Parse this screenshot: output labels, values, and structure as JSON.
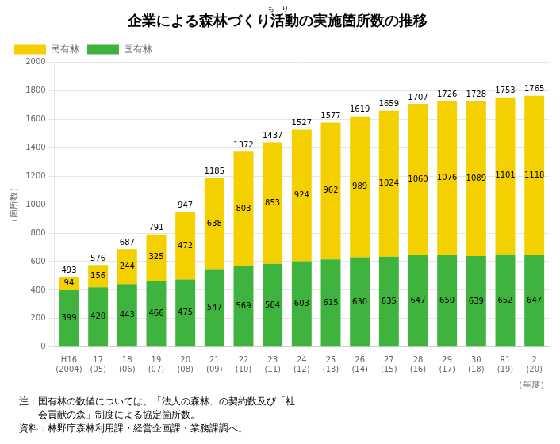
{
  "chart_data": {
    "type": "bar",
    "stacked": true,
    "title": "企業による森林づくり活動の実施箇所数の推移",
    "subtitle": "も　り",
    "ylabel": "（箇所数）",
    "xlabel": "（年度）",
    "categories": [
      [
        "H16",
        "(2004)"
      ],
      [
        "17",
        "(05)"
      ],
      [
        "18",
        "(06)"
      ],
      [
        "19",
        "(07)"
      ],
      [
        "20",
        "(08)"
      ],
      [
        "21",
        "(09)"
      ],
      [
        "22",
        "(10)"
      ],
      [
        "23",
        "(11)"
      ],
      [
        "24",
        "(12)"
      ],
      [
        "25",
        "(13)"
      ],
      [
        "26",
        "(14)"
      ],
      [
        "27",
        "(15)"
      ],
      [
        "28",
        "(16)"
      ],
      [
        "29",
        "(17)"
      ],
      [
        "30",
        "(18)"
      ],
      [
        "R1",
        "(19)"
      ],
      [
        "2",
        "(20)"
      ]
    ],
    "series": [
      {
        "name": "国有林",
        "color": "#3eb43e",
        "values": [
          399,
          420,
          443,
          466,
          475,
          547,
          569,
          584,
          603,
          615,
          630,
          635,
          647,
          650,
          639,
          652,
          647
        ]
      },
      {
        "name": "民有林",
        "color": "#f5d000",
        "values": [
          94,
          156,
          244,
          325,
          472,
          638,
          803,
          853,
          924,
          962,
          989,
          1024,
          1060,
          1076,
          1089,
          1101,
          1118
        ]
      }
    ],
    "totals": [
      493,
      576,
      687,
      791,
      947,
      1185,
      1372,
      1437,
      1527,
      1577,
      1619,
      1659,
      1707,
      1726,
      1728,
      1753,
      1765
    ],
    "ylim": [
      0,
      2000
    ],
    "yticks": [
      0,
      200,
      400,
      600,
      800,
      1000,
      1200,
      1400,
      1600,
      1800,
      2000
    ],
    "grid": true,
    "legend": "upper left",
    "data_labels": true,
    "annotations": [
      "注：国有林の数値については、「法人の森林」の契約数及び「社",
      "　　会貢献の森」制度による協定箇所数。",
      "資料：林野庁森林利用課・経営企画課・業務課調べ。"
    ]
  }
}
